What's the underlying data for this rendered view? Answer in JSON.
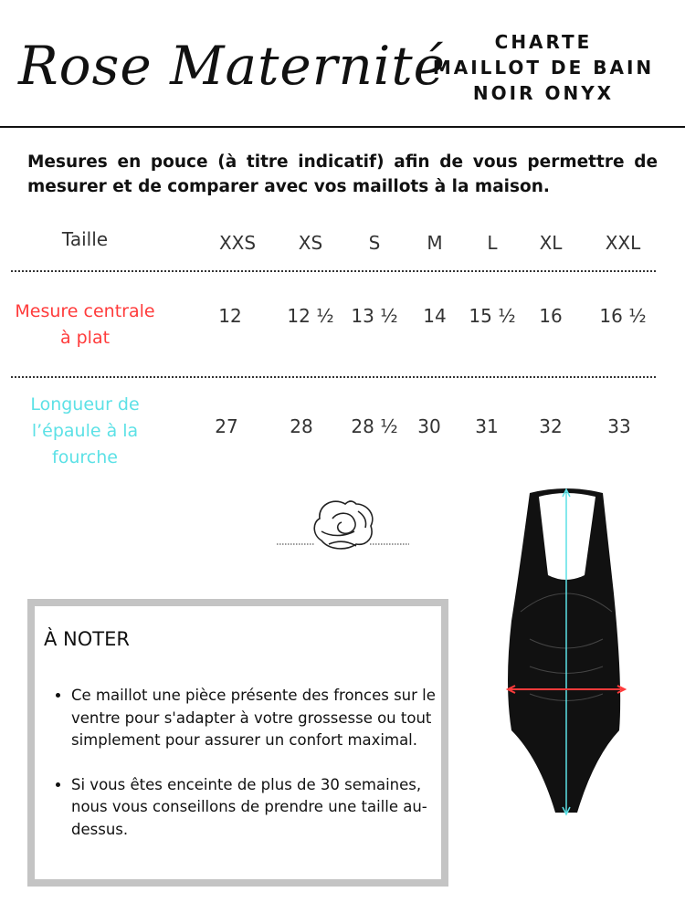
{
  "brand": "Rose Maternité",
  "title": [
    "CHARTE",
    "MAILLOT DE BAIN",
    "NOIR ONYX"
  ],
  "intro": "Mesures en pouce (à titre indicatif) afin de vous permettre de mesurer et de comparer avec vos maillots à la maison.",
  "table": {
    "header_label": "Taille",
    "sizes": [
      "XXS",
      "XS",
      "S",
      "M",
      "L",
      "XL",
      "XXL"
    ],
    "rows": [
      {
        "label": "Mesure centrale à plat",
        "color": "#ff3b3b",
        "values": [
          "12",
          "12 ½",
          "13 ½",
          "14",
          "15 ½",
          "16",
          "16 ½"
        ]
      },
      {
        "label": "Longueur de l’épaule à la fourche",
        "color": "#5ce1e6",
        "values": [
          "27",
          "28",
          "28 ½",
          "30",
          "31",
          "32",
          "33"
        ]
      }
    ]
  },
  "note": {
    "heading": "À NOTER",
    "items": [
      "Ce maillot une pièce présente des fronces sur le ventre pour s'adapter à votre grossesse ou tout simplement pour assurer un confort maximal.",
      "Si vous êtes enceinte de plus de 30 semaines, nous vous conseillons de prendre une taille au-dessus."
    ]
  }
}
